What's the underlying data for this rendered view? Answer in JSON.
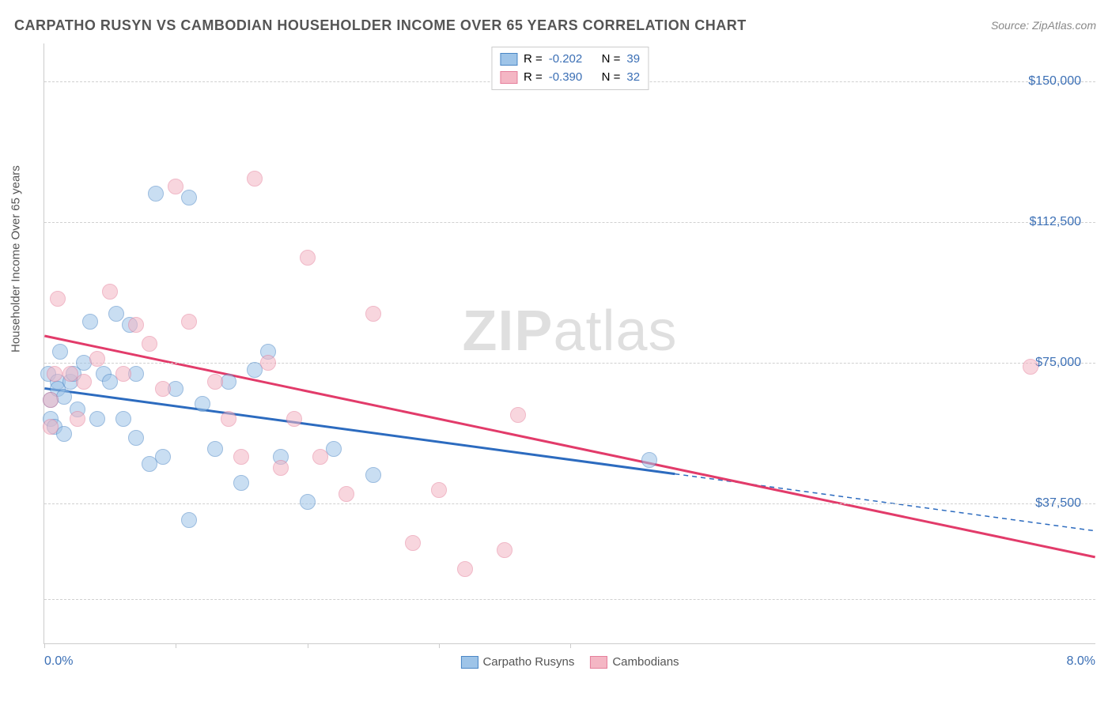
{
  "title": "CARPATHO RUSYN VS CAMBODIAN HOUSEHOLDER INCOME OVER 65 YEARS CORRELATION CHART",
  "source_label": "Source: ZipAtlas.com",
  "ylabel": "Householder Income Over 65 years",
  "watermark_a": "ZIP",
  "watermark_b": "atlas",
  "chart": {
    "type": "scatter",
    "xlim": [
      0,
      8
    ],
    "ylim": [
      0,
      160000
    ],
    "xtick_labels": [
      "0.0%",
      "8.0%"
    ],
    "xtick_positions": [
      0,
      1,
      2,
      3,
      4
    ],
    "ytick_labels": [
      "$37,500",
      "$75,000",
      "$112,500",
      "$150,000"
    ],
    "ytick_values": [
      37500,
      75000,
      112500,
      150000
    ],
    "gridline_values": [
      12000,
      37500,
      75000,
      112500,
      150000
    ],
    "point_radius": 10,
    "background_color": "#ffffff",
    "grid_color": "#d0d0d0",
    "series": [
      {
        "name": "Carpatho Rusyns",
        "fill": "#9ec4e8",
        "stroke": "#4a86c5",
        "opacity": 0.55,
        "trend": {
          "color": "#2c6bbf",
          "width": 3,
          "y_at_x0": 68000,
          "y_at_x8": 30000,
          "x_solid_end": 4.8
        },
        "stats": {
          "R": "-0.202",
          "N": "39"
        },
        "points": [
          [
            0.03,
            72000
          ],
          [
            0.05,
            60000
          ],
          [
            0.05,
            65000
          ],
          [
            0.08,
            58000
          ],
          [
            0.1,
            70000
          ],
          [
            0.1,
            68000
          ],
          [
            0.12,
            78000
          ],
          [
            0.15,
            56000
          ],
          [
            0.15,
            66000
          ],
          [
            0.2,
            70000
          ],
          [
            0.22,
            72000
          ],
          [
            0.25,
            62500
          ],
          [
            0.3,
            75000
          ],
          [
            0.35,
            86000
          ],
          [
            0.4,
            60000
          ],
          [
            0.45,
            72000
          ],
          [
            0.5,
            70000
          ],
          [
            0.55,
            88000
          ],
          [
            0.6,
            60000
          ],
          [
            0.65,
            85000
          ],
          [
            0.7,
            55000
          ],
          [
            0.7,
            72000
          ],
          [
            0.8,
            48000
          ],
          [
            0.85,
            120000
          ],
          [
            0.9,
            50000
          ],
          [
            1.0,
            68000
          ],
          [
            1.1,
            119000
          ],
          [
            1.1,
            33000
          ],
          [
            1.2,
            64000
          ],
          [
            1.3,
            52000
          ],
          [
            1.4,
            70000
          ],
          [
            1.5,
            43000
          ],
          [
            1.6,
            73000
          ],
          [
            1.7,
            78000
          ],
          [
            1.8,
            50000
          ],
          [
            2.0,
            38000
          ],
          [
            2.2,
            52000
          ],
          [
            2.5,
            45000
          ],
          [
            4.6,
            49000
          ]
        ]
      },
      {
        "name": "Cambodians",
        "fill": "#f4b6c4",
        "stroke": "#e57f9b",
        "opacity": 0.55,
        "trend": {
          "color": "#e23b6a",
          "width": 3,
          "y_at_x0": 82000,
          "y_at_x8": 23000,
          "x_solid_end": 8.0
        },
        "stats": {
          "R": "-0.390",
          "N": "32"
        },
        "points": [
          [
            0.05,
            65000
          ],
          [
            0.05,
            58000
          ],
          [
            0.08,
            72000
          ],
          [
            0.1,
            92000
          ],
          [
            0.2,
            72000
          ],
          [
            0.25,
            60000
          ],
          [
            0.3,
            70000
          ],
          [
            0.4,
            76000
          ],
          [
            0.5,
            94000
          ],
          [
            0.6,
            72000
          ],
          [
            0.7,
            85000
          ],
          [
            0.8,
            80000
          ],
          [
            0.9,
            68000
          ],
          [
            1.0,
            122000
          ],
          [
            1.1,
            86000
          ],
          [
            1.3,
            70000
          ],
          [
            1.4,
            60000
          ],
          [
            1.5,
            50000
          ],
          [
            1.6,
            124000
          ],
          [
            1.7,
            75000
          ],
          [
            1.8,
            47000
          ],
          [
            1.9,
            60000
          ],
          [
            2.0,
            103000
          ],
          [
            2.1,
            50000
          ],
          [
            2.3,
            40000
          ],
          [
            2.5,
            88000
          ],
          [
            2.8,
            27000
          ],
          [
            3.0,
            41000
          ],
          [
            3.2,
            20000
          ],
          [
            3.5,
            25000
          ],
          [
            3.6,
            61000
          ],
          [
            7.5,
            74000
          ]
        ]
      }
    ]
  },
  "legend_top": [
    {
      "swatch_fill": "#9ec4e8",
      "swatch_stroke": "#4a86c5",
      "R_label": "R =",
      "R": "-0.202",
      "N_label": "N =",
      "N": "39"
    },
    {
      "swatch_fill": "#f4b6c4",
      "swatch_stroke": "#e57f9b",
      "R_label": "R =",
      "R": "-0.390",
      "N_label": "N =",
      "N": "32"
    }
  ],
  "legend_bottom": [
    {
      "swatch_fill": "#9ec4e8",
      "swatch_stroke": "#4a86c5",
      "label": "Carpatho Rusyns"
    },
    {
      "swatch_fill": "#f4b6c4",
      "swatch_stroke": "#e57f9b",
      "label": "Cambodians"
    }
  ]
}
